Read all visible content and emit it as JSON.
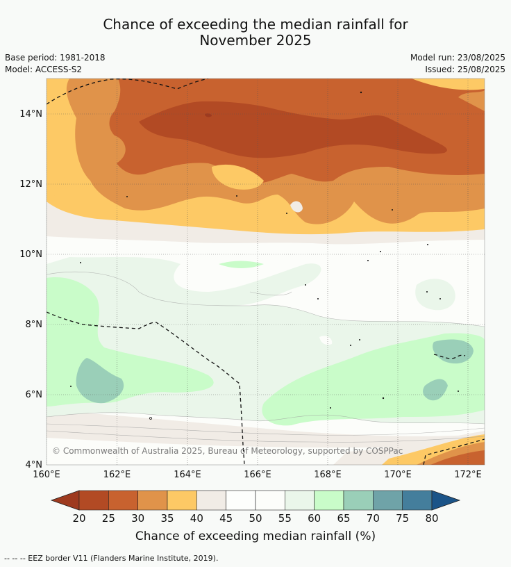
{
  "title_line1": "Chance of exceeding the median rainfall for",
  "title_line2": "November 2025",
  "base_period": "Base period: 1981-2018",
  "model": "Model: ACCESS-S2",
  "model_run": "Model run: 23/08/2025",
  "issued": "Issued: 25/08/2025",
  "copyright": "© Commonwealth of Australia 2025, Bureau of Meteorology, supported by COSPPac",
  "footer": "--  --  -- EEZ border V11 (Flanders Marine Institute, 2019).",
  "map": {
    "lat_ticks": [
      "14°N",
      "12°N",
      "10°N",
      "8°N",
      "6°N",
      "4°N"
    ],
    "lon_ticks": [
      "160°E",
      "162°E",
      "164°E",
      "166°E",
      "168°E",
      "170°E",
      "172°E"
    ]
  },
  "colorbar": {
    "label": "Chance of exceeding median rainfall (%)",
    "ticks": [
      "20",
      "25",
      "30",
      "35",
      "40",
      "45",
      "50",
      "55",
      "60",
      "65",
      "70",
      "75",
      "80"
    ],
    "colors": [
      "#9e3a1f",
      "#b24a24",
      "#c8622f",
      "#e0934a",
      "#fdc965",
      "#f1ece6",
      "#fdfefc",
      "#fcfdfa",
      "#eaf6ea",
      "#c9fcc9",
      "#9acfb8",
      "#6fa3a8",
      "#447e9c",
      "#1b5488"
    ]
  }
}
